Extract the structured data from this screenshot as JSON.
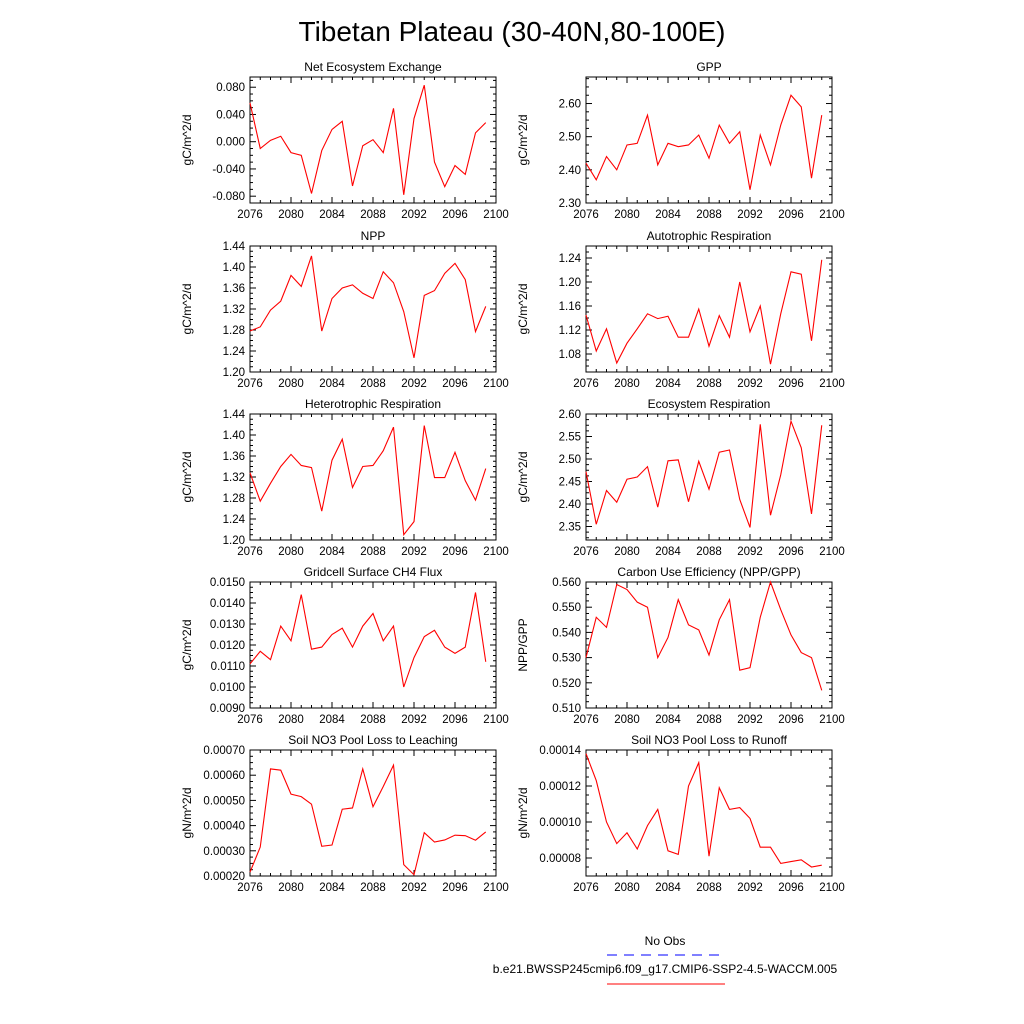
{
  "title": "Tibetan Plateau (30-40N,80-100E)",
  "legend": {
    "obs_label": "No Obs",
    "obs_color": "#0000ff",
    "model_label": "b.e21.BWSSP245cmip6.f09_g17.CMIP6-SSP2-4.5-WACCM.005",
    "model_color": "#ff0000"
  },
  "chart_data": [
    {
      "type": "line",
      "title": "Net Ecosystem Exchange",
      "xlabel": "",
      "ylabel": "gC/m^2/d",
      "xlim": [
        2076,
        2100
      ],
      "xticks": [
        2076,
        2080,
        2084,
        2088,
        2092,
        2096,
        2100
      ],
      "ylim": [
        -0.09,
        0.095
      ],
      "yticks": [
        -0.08,
        -0.04,
        0.0,
        0.04,
        0.08
      ],
      "ytick_labels": [
        "-0.080",
        "-0.040",
        "0.000",
        "0.040",
        "0.080"
      ],
      "series": [
        {
          "color": "#ff0000",
          "x": [
            2076,
            2077,
            2078,
            2079,
            2080,
            2081,
            2082,
            2083,
            2084,
            2085,
            2086,
            2087,
            2088,
            2089,
            2090,
            2091,
            2092,
            2093,
            2094,
            2095,
            2096,
            2097,
            2098,
            2099
          ],
          "values": [
            0.057,
            -0.01,
            0.002,
            0.008,
            -0.016,
            -0.02,
            -0.076,
            -0.013,
            0.018,
            0.03,
            -0.065,
            -0.006,
            0.003,
            -0.016,
            0.049,
            -0.078,
            0.034,
            0.083,
            -0.03,
            -0.066,
            -0.035,
            -0.048,
            0.013,
            0.028
          ]
        }
      ]
    },
    {
      "type": "line",
      "title": "GPP",
      "xlabel": "",
      "ylabel": "gC/m^2/d",
      "xlim": [
        2076,
        2100
      ],
      "xticks": [
        2076,
        2080,
        2084,
        2088,
        2092,
        2096,
        2100
      ],
      "ylim": [
        2.3,
        2.68
      ],
      "yticks": [
        2.3,
        2.4,
        2.5,
        2.6
      ],
      "ytick_labels": [
        "2.30",
        "2.40",
        "2.50",
        "2.60"
      ],
      "series": [
        {
          "color": "#ff0000",
          "x": [
            2076,
            2077,
            2078,
            2079,
            2080,
            2081,
            2082,
            2083,
            2084,
            2085,
            2086,
            2087,
            2088,
            2089,
            2090,
            2091,
            2092,
            2093,
            2094,
            2095,
            2096,
            2097,
            2098,
            2099
          ],
          "values": [
            2.42,
            2.37,
            2.44,
            2.4,
            2.475,
            2.48,
            2.565,
            2.415,
            2.48,
            2.47,
            2.475,
            2.505,
            2.435,
            2.535,
            2.48,
            2.515,
            2.34,
            2.505,
            2.415,
            2.535,
            2.625,
            2.59,
            2.375,
            2.565
          ]
        }
      ]
    },
    {
      "type": "line",
      "title": "NPP",
      "xlabel": "",
      "ylabel": "gC/m^2/d",
      "xlim": [
        2076,
        2100
      ],
      "xticks": [
        2076,
        2080,
        2084,
        2088,
        2092,
        2096,
        2100
      ],
      "ylim": [
        1.2,
        1.44
      ],
      "yticks": [
        1.2,
        1.24,
        1.28,
        1.32,
        1.36,
        1.4,
        1.44
      ],
      "ytick_labels": [
        "1.20",
        "1.24",
        "1.28",
        "1.32",
        "1.36",
        "1.40",
        "1.44"
      ],
      "series": [
        {
          "color": "#ff0000",
          "x": [
            2076,
            2077,
            2078,
            2079,
            2080,
            2081,
            2082,
            2083,
            2084,
            2085,
            2086,
            2087,
            2088,
            2089,
            2090,
            2091,
            2092,
            2093,
            2094,
            2095,
            2096,
            2097,
            2098,
            2099
          ],
          "values": [
            1.278,
            1.286,
            1.318,
            1.335,
            1.384,
            1.363,
            1.421,
            1.278,
            1.34,
            1.36,
            1.366,
            1.35,
            1.34,
            1.391,
            1.37,
            1.315,
            1.227,
            1.346,
            1.355,
            1.388,
            1.407,
            1.376,
            1.277,
            1.325
          ]
        }
      ]
    },
    {
      "type": "line",
      "title": "Autotrophic Respiration",
      "xlabel": "",
      "ylabel": "gC/m^2/d",
      "xlim": [
        2076,
        2100
      ],
      "xticks": [
        2076,
        2080,
        2084,
        2088,
        2092,
        2096,
        2100
      ],
      "ylim": [
        1.05,
        1.26
      ],
      "yticks": [
        1.08,
        1.12,
        1.16,
        1.2,
        1.24
      ],
      "ytick_labels": [
        "1.08",
        "1.12",
        "1.16",
        "1.20",
        "1.24"
      ],
      "series": [
        {
          "color": "#ff0000",
          "x": [
            2076,
            2077,
            2078,
            2079,
            2080,
            2081,
            2082,
            2083,
            2084,
            2085,
            2086,
            2087,
            2088,
            2089,
            2090,
            2091,
            2092,
            2093,
            2094,
            2095,
            2096,
            2097,
            2098,
            2099
          ],
          "values": [
            1.145,
            1.085,
            1.122,
            1.065,
            1.098,
            1.122,
            1.147,
            1.139,
            1.143,
            1.108,
            1.108,
            1.155,
            1.093,
            1.144,
            1.108,
            1.2,
            1.117,
            1.16,
            1.063,
            1.147,
            1.217,
            1.213,
            1.102,
            1.237
          ]
        }
      ]
    },
    {
      "type": "line",
      "title": "Heterotrophic Respiration",
      "xlabel": "",
      "ylabel": "gC/m^2/d",
      "xlim": [
        2076,
        2100
      ],
      "xticks": [
        2076,
        2080,
        2084,
        2088,
        2092,
        2096,
        2100
      ],
      "ylim": [
        1.2,
        1.44
      ],
      "yticks": [
        1.2,
        1.24,
        1.28,
        1.32,
        1.36,
        1.4,
        1.44
      ],
      "ytick_labels": [
        "1.20",
        "1.24",
        "1.28",
        "1.32",
        "1.36",
        "1.40",
        "1.44"
      ],
      "series": [
        {
          "color": "#ff0000",
          "x": [
            2076,
            2077,
            2078,
            2079,
            2080,
            2081,
            2082,
            2083,
            2084,
            2085,
            2086,
            2087,
            2088,
            2089,
            2090,
            2091,
            2092,
            2093,
            2094,
            2095,
            2096,
            2097,
            2098,
            2099
          ],
          "values": [
            1.328,
            1.274,
            1.308,
            1.34,
            1.363,
            1.342,
            1.338,
            1.255,
            1.352,
            1.392,
            1.3,
            1.34,
            1.342,
            1.37,
            1.415,
            1.21,
            1.235,
            1.418,
            1.319,
            1.319,
            1.367,
            1.313,
            1.276,
            1.336
          ]
        }
      ]
    },
    {
      "type": "line",
      "title": "Ecosystem Respiration",
      "xlabel": "",
      "ylabel": "gC/m^2/d",
      "xlim": [
        2076,
        2100
      ],
      "xticks": [
        2076,
        2080,
        2084,
        2088,
        2092,
        2096,
        2100
      ],
      "ylim": [
        2.32,
        2.6
      ],
      "yticks": [
        2.35,
        2.4,
        2.45,
        2.5,
        2.55,
        2.6
      ],
      "ytick_labels": [
        "2.35",
        "2.40",
        "2.45",
        "2.50",
        "2.55",
        "2.60"
      ],
      "series": [
        {
          "color": "#ff0000",
          "x": [
            2076,
            2077,
            2078,
            2079,
            2080,
            2081,
            2082,
            2083,
            2084,
            2085,
            2086,
            2087,
            2088,
            2089,
            2090,
            2091,
            2092,
            2093,
            2094,
            2095,
            2096,
            2097,
            2098,
            2099
          ],
          "values": [
            2.472,
            2.355,
            2.43,
            2.404,
            2.455,
            2.46,
            2.483,
            2.393,
            2.496,
            2.498,
            2.405,
            2.495,
            2.433,
            2.515,
            2.52,
            2.41,
            2.348,
            2.577,
            2.375,
            2.465,
            2.584,
            2.525,
            2.378,
            2.575
          ]
        }
      ]
    },
    {
      "type": "line",
      "title": "Gridcell Surface CH4 Flux",
      "xlabel": "",
      "ylabel": "gC/m^2/d",
      "xlim": [
        2076,
        2100
      ],
      "xticks": [
        2076,
        2080,
        2084,
        2088,
        2092,
        2096,
        2100
      ],
      "ylim": [
        0.009,
        0.015
      ],
      "yticks": [
        0.009,
        0.01,
        0.011,
        0.012,
        0.013,
        0.014,
        0.015
      ],
      "ytick_labels": [
        "0.0090",
        "0.0100",
        "0.0110",
        "0.0120",
        "0.0130",
        "0.0140",
        "0.0150"
      ],
      "series": [
        {
          "color": "#ff0000",
          "x": [
            2076,
            2077,
            2078,
            2079,
            2080,
            2081,
            2082,
            2083,
            2084,
            2085,
            2086,
            2087,
            2088,
            2089,
            2090,
            2091,
            2092,
            2093,
            2094,
            2095,
            2096,
            2097,
            2098,
            2099
          ],
          "values": [
            0.0111,
            0.0117,
            0.0113,
            0.0129,
            0.0122,
            0.0144,
            0.0118,
            0.0119,
            0.0125,
            0.0128,
            0.0119,
            0.0129,
            0.0135,
            0.0122,
            0.0129,
            0.01,
            0.0114,
            0.0124,
            0.0127,
            0.0119,
            0.0116,
            0.0119,
            0.0145,
            0.0112
          ]
        }
      ]
    },
    {
      "type": "line",
      "title": "Carbon Use Efficiency (NPP/GPP)",
      "xlabel": "",
      "ylabel": "NPP/GPP",
      "xlim": [
        2076,
        2100
      ],
      "xticks": [
        2076,
        2080,
        2084,
        2088,
        2092,
        2096,
        2100
      ],
      "ylim": [
        0.51,
        0.56
      ],
      "yticks": [
        0.51,
        0.52,
        0.53,
        0.54,
        0.55,
        0.56
      ],
      "ytick_labels": [
        "0.510",
        "0.520",
        "0.530",
        "0.540",
        "0.550",
        "0.560"
      ],
      "series": [
        {
          "color": "#ff0000",
          "x": [
            2076,
            2077,
            2078,
            2079,
            2080,
            2081,
            2082,
            2083,
            2084,
            2085,
            2086,
            2087,
            2088,
            2089,
            2090,
            2091,
            2092,
            2093,
            2094,
            2095,
            2096,
            2097,
            2098,
            2099
          ],
          "values": [
            0.53,
            0.546,
            0.542,
            0.559,
            0.557,
            0.552,
            0.55,
            0.53,
            0.538,
            0.553,
            0.543,
            0.541,
            0.531,
            0.545,
            0.553,
            0.525,
            0.526,
            0.546,
            0.56,
            0.549,
            0.539,
            0.532,
            0.53,
            0.517
          ]
        }
      ]
    },
    {
      "type": "line",
      "title": "Soil NO3 Pool Loss to Leaching",
      "xlabel": "",
      "ylabel": "gN/m^2/d",
      "xlim": [
        2076,
        2100
      ],
      "xticks": [
        2076,
        2080,
        2084,
        2088,
        2092,
        2096,
        2100
      ],
      "ylim": [
        0.0002,
        0.0007
      ],
      "yticks": [
        0.0002,
        0.0003,
        0.0004,
        0.0005,
        0.0006,
        0.0007
      ],
      "ytick_labels": [
        "0.00020",
        "0.00030",
        "0.00040",
        "0.00050",
        "0.00060",
        "0.00070"
      ],
      "series": [
        {
          "color": "#ff0000",
          "x": [
            2076,
            2077,
            2078,
            2079,
            2080,
            2081,
            2082,
            2083,
            2084,
            2085,
            2086,
            2087,
            2088,
            2089,
            2090,
            2091,
            2092,
            2093,
            2094,
            2095,
            2096,
            2097,
            2098,
            2099
          ],
          "values": [
            0.000215,
            0.000315,
            0.000625,
            0.00062,
            0.000525,
            0.000515,
            0.000485,
            0.000318,
            0.000323,
            0.000465,
            0.00047,
            0.000625,
            0.000475,
            0.000555,
            0.00064,
            0.000245,
            0.000205,
            0.000372,
            0.000335,
            0.000343,
            0.000362,
            0.00036,
            0.000342,
            0.000375
          ]
        }
      ]
    },
    {
      "type": "line",
      "title": "Soil NO3 Pool Loss to Runoff",
      "xlabel": "",
      "ylabel": "gN/m^2/d",
      "xlim": [
        2076,
        2100
      ],
      "xticks": [
        2076,
        2080,
        2084,
        2088,
        2092,
        2096,
        2100
      ],
      "ylim": [
        7e-05,
        0.00014
      ],
      "yticks": [
        8e-05,
        0.0001,
        0.00012,
        0.00014
      ],
      "ytick_labels": [
        "0.00008",
        "0.00010",
        "0.00012",
        "0.00014"
      ],
      "series": [
        {
          "color": "#ff0000",
          "x": [
            2076,
            2077,
            2078,
            2079,
            2080,
            2081,
            2082,
            2083,
            2084,
            2085,
            2086,
            2087,
            2088,
            2089,
            2090,
            2091,
            2092,
            2093,
            2094,
            2095,
            2096,
            2097,
            2098,
            2099
          ],
          "values": [
            0.000138,
            0.000123,
            0.0001,
            8.8e-05,
            9.4e-05,
            8.5e-05,
            9.8e-05,
            0.000107,
            8.4e-05,
            8.2e-05,
            0.00012,
            0.000133,
            8.1e-05,
            0.000119,
            0.000107,
            0.000108,
            0.000102,
            8.6e-05,
            8.6e-05,
            7.7e-05,
            7.8e-05,
            7.9e-05,
            7.5e-05,
            7.6e-05
          ]
        }
      ]
    }
  ]
}
